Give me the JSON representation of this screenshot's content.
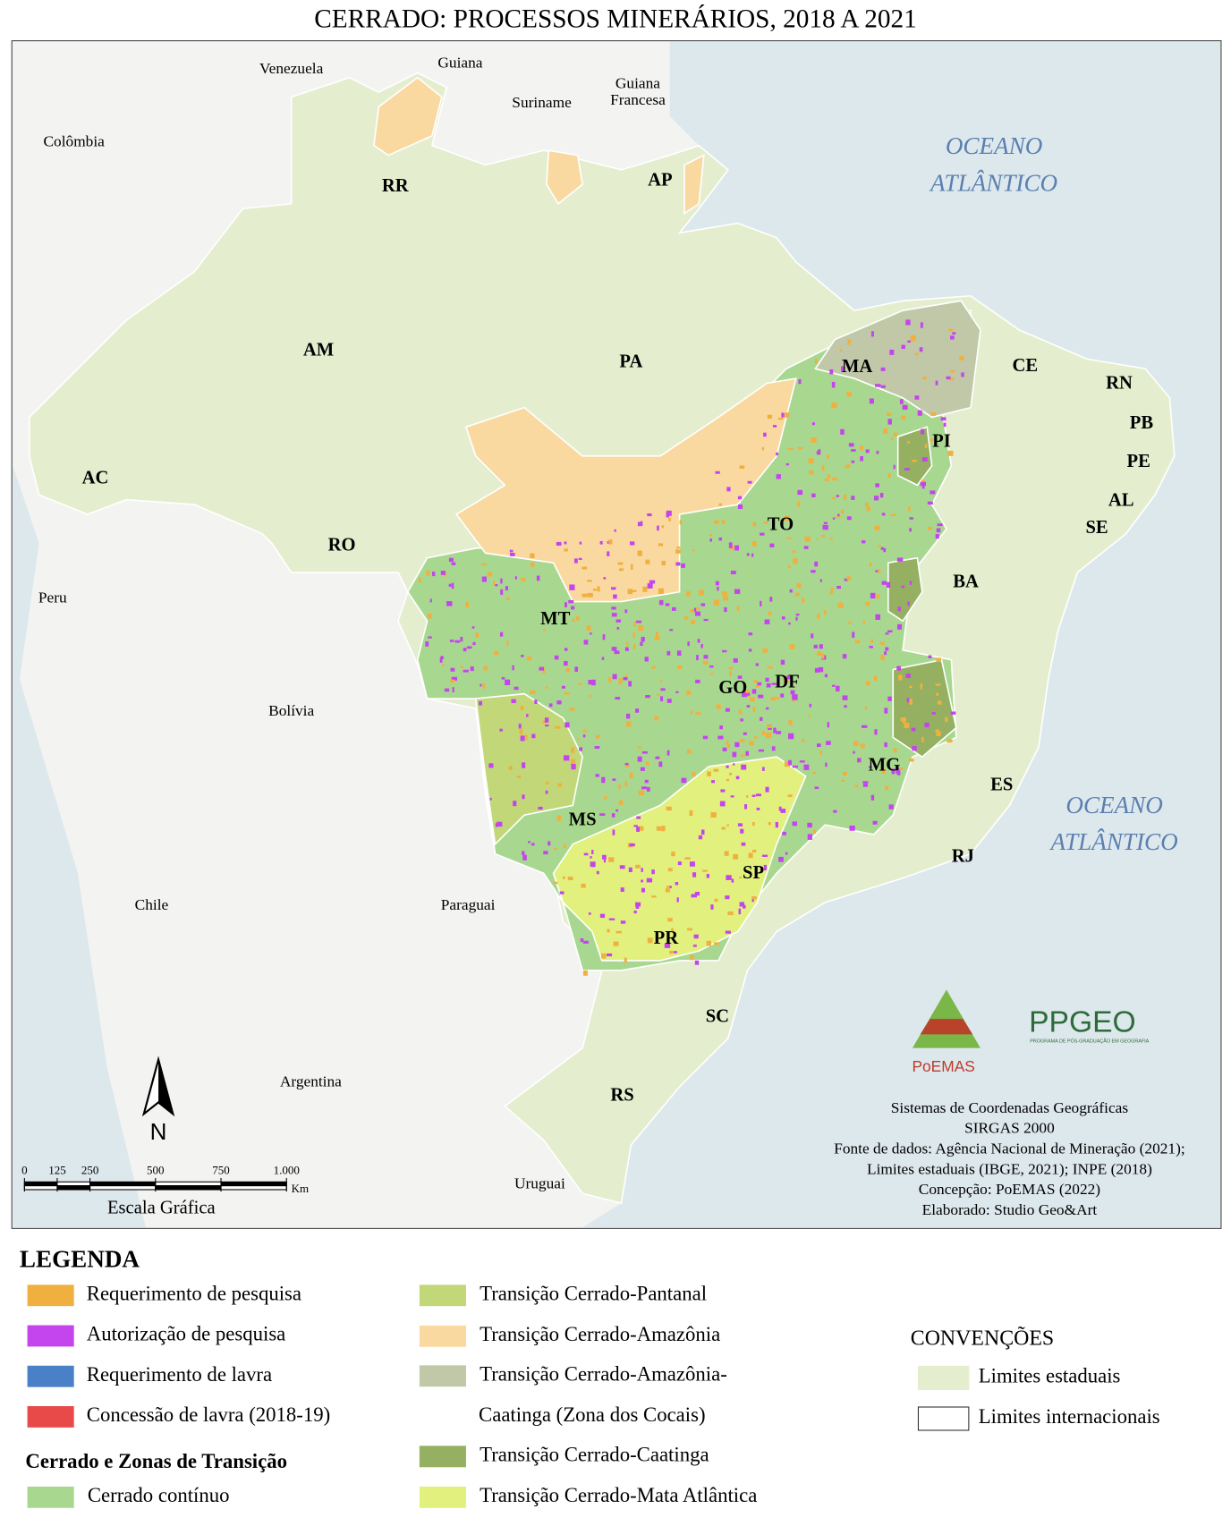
{
  "title": "CERRADO: PROCESSOS MINERÁRIOS, 2018 A 2021",
  "countries": [
    {
      "lines": [
        "Venezuela"
      ]
    },
    {
      "lines": [
        "Guiana"
      ]
    },
    {
      "lines": [
        "Suriname"
      ]
    },
    {
      "lines": [
        "Guiana",
        "Francesa"
      ]
    },
    {
      "lines": [
        "Colômbia"
      ]
    },
    {
      "lines": [
        "Peru"
      ]
    },
    {
      "lines": [
        "Bolívia"
      ]
    },
    {
      "lines": [
        "Chile"
      ]
    },
    {
      "lines": [
        "Paraguai"
      ]
    },
    {
      "lines": [
        "Argentina"
      ]
    },
    {
      "lines": [
        "Uruguai"
      ]
    }
  ],
  "oceans": [
    {
      "lines": [
        "OCEANO",
        "ATLÂNTICO"
      ]
    },
    {
      "lines": [
        "OCEANO",
        "ATLÂNTICO"
      ]
    }
  ],
  "states": [
    "RR",
    "AP",
    "AM",
    "PA",
    "MA",
    "CE",
    "RN",
    "PB",
    "PE",
    "AL",
    "SE",
    "PI",
    "AC",
    "TO",
    "RO",
    "BA",
    "MT",
    "GO",
    "DF",
    "MG",
    "ES",
    "MS",
    "RJ",
    "SP",
    "PR",
    "SC",
    "RS"
  ],
  "scale": {
    "ticks": [
      0,
      125,
      250,
      500,
      750,
      {
        "value": 1000,
        "label": "1.000"
      }
    ],
    "unit": "Km",
    "caption": "Escala Gráfica"
  },
  "north": "N",
  "credits": [
    "Sistemas de Coordenadas Geográficas",
    "SIRGAS 2000",
    "Fonte de dados: Agência Nacional de Mineração (2021);",
    "Limites estaduais (IBGE, 2021); INPE (2018)",
    "Concepção: PoEMAS (2022)",
    "Elaborado: Studio Geo&Art"
  ],
  "logos": {
    "poemas": "PoEMAS",
    "ppgeo": "PPGEO",
    "ppgeo_sub": "PROGRAMA DE PÓS-GRADUAÇÃO EM GEOGRAFIA"
  },
  "legend": {
    "title": "LEGENDA",
    "processes": [
      {
        "label": "Requerimento de pesquisa",
        "color": "#f0b040"
      },
      {
        "label": "Autorização de pesquisa",
        "color": "#c444ee"
      },
      {
        "label": "Requerimento de lavra",
        "color": "#4a80c8"
      },
      {
        "label": "Concessão de lavra (2018-19)",
        "color": "#e84a4a"
      }
    ],
    "zones_title": "Cerrado e Zonas de Transição",
    "zones": [
      {
        "lines": [
          "Cerrado contínuo"
        ],
        "color": "#a8d890"
      },
      {
        "lines": [
          "Transição Cerrado-Pantanal"
        ],
        "color": "#c2d878"
      },
      {
        "lines": [
          "Transição Cerrado-Amazônia"
        ],
        "color": "#fad9a0"
      },
      {
        "lines": [
          "Transição Cerrado-Amazônia-",
          "Caatinga (Zona dos Cocais)"
        ],
        "color": "#c0c8a8"
      },
      {
        "lines": [
          "Transição Cerrado-Caatinga"
        ],
        "color": "#94b060"
      },
      {
        "lines": [
          "Transição Cerrado-Mata Atlântica"
        ],
        "color": "#e2f07e"
      }
    ]
  },
  "conventions": {
    "title": "CONVENÇÕES",
    "items": [
      {
        "label": "Limites estaduais",
        "fill": "#e4eecf",
        "stroke": "#e4eecf"
      },
      {
        "label": "Limites internacionais",
        "fill": "#ffffff",
        "stroke": "#333333"
      }
    ]
  }
}
